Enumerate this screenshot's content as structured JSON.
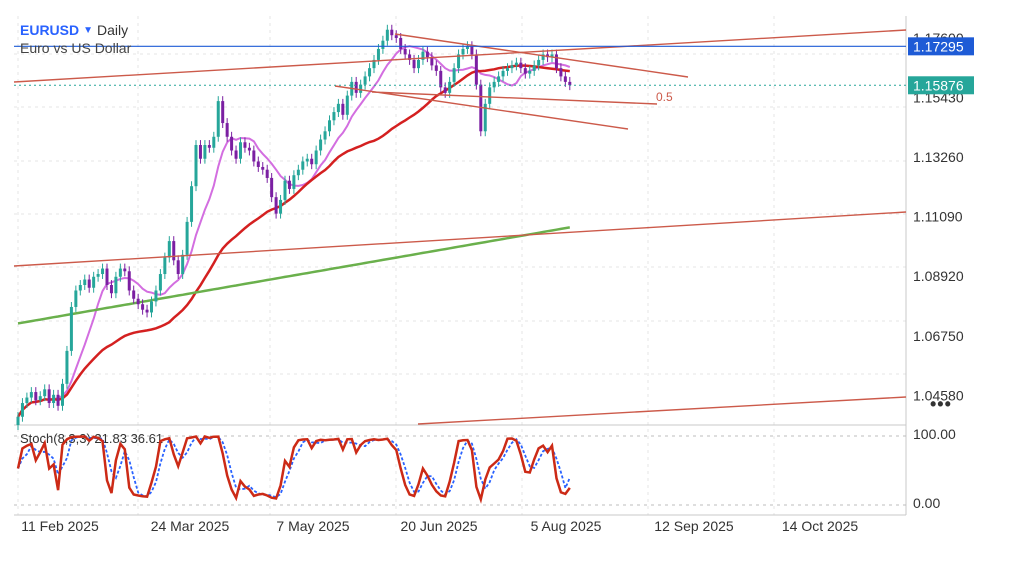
{
  "header": {
    "symbol": "EURUSD",
    "timeframe": "Daily",
    "description": "Euro vs US Dollar"
  },
  "more_menu": "•••",
  "colors": {
    "up_candle": "#26a69a",
    "down_candle": "#7b1fa2",
    "ma_fast": "#d36ee0",
    "ma_mid": "#d42020",
    "ma_slow": "#6ab04c",
    "trendline": "#cc5a4a",
    "hline_solid": "#1e5bd6",
    "hline_dotted": "#26a69a",
    "stoch_k": "#cc2a16",
    "stoch_d": "#2962ff"
  },
  "chart_data": {
    "type": "candlestick",
    "ylim": [
      1.035,
      1.184
    ],
    "yticks": [
      "1.17600",
      "1.15430",
      "1.13260",
      "1.11090",
      "1.08920",
      "1.06750",
      "1.04580"
    ],
    "xticks": [
      "11 Feb 2025",
      "24 Mar 2025",
      "7 May 2025",
      "20 Jun 2025",
      "5 Aug 2025",
      "12 Sep 2025",
      "14 Oct 2025"
    ],
    "price_labels": [
      {
        "text": "1.17295",
        "value": 1.17295
      },
      {
        "text": "1.15876",
        "value": 1.15876
      }
    ],
    "fib_label": "0.5",
    "closes": [
      1.038,
      1.043,
      1.045,
      1.047,
      1.044,
      1.0455,
      1.048,
      1.043,
      1.046,
      1.042,
      1.05,
      1.062,
      1.078,
      1.084,
      1.086,
      1.088,
      1.085,
      1.089,
      1.09,
      1.092,
      1.086,
      1.083,
      1.089,
      1.092,
      1.091,
      1.084,
      1.081,
      1.079,
      1.077,
      1.076,
      1.08,
      1.084,
      1.09,
      1.096,
      1.102,
      1.095,
      1.09,
      1.097,
      1.109,
      1.122,
      1.137,
      1.132,
      1.137,
      1.136,
      1.14,
      1.153,
      1.145,
      1.14,
      1.135,
      1.132,
      1.138,
      1.136,
      1.135,
      1.131,
      1.129,
      1.128,
      1.125,
      1.118,
      1.112,
      1.117,
      1.124,
      1.121,
      1.126,
      1.128,
      1.131,
      1.132,
      1.13,
      1.135,
      1.139,
      1.142,
      1.146,
      1.149,
      1.152,
      1.148,
      1.155,
      1.16,
      1.156,
      1.159,
      1.162,
      1.165,
      1.168,
      1.172,
      1.175,
      1.179,
      1.177,
      1.176,
      1.172,
      1.17,
      1.168,
      1.165,
      1.168,
      1.171,
      1.169,
      1.166,
      1.164,
      1.158,
      1.156,
      1.16,
      1.165,
      1.17,
      1.172,
      1.173,
      1.17,
      1.159,
      1.142,
      1.152,
      1.158,
      1.16,
      1.162,
      1.164,
      1.165,
      1.166,
      1.167,
      1.165,
      1.163,
      1.164,
      1.166,
      1.168,
      1.17,
      1.169,
      1.17,
      1.165,
      1.162,
      1.16,
      1.1588
    ],
    "indicator": {
      "name": "Stoch (8,3,3)",
      "k": 21.83,
      "d": 36.61,
      "label": "Stoch(8,3,3) 21.83 36.61",
      "yticks": [
        "100.00",
        "0.00"
      ],
      "ylim": [
        0,
        100
      ]
    }
  }
}
